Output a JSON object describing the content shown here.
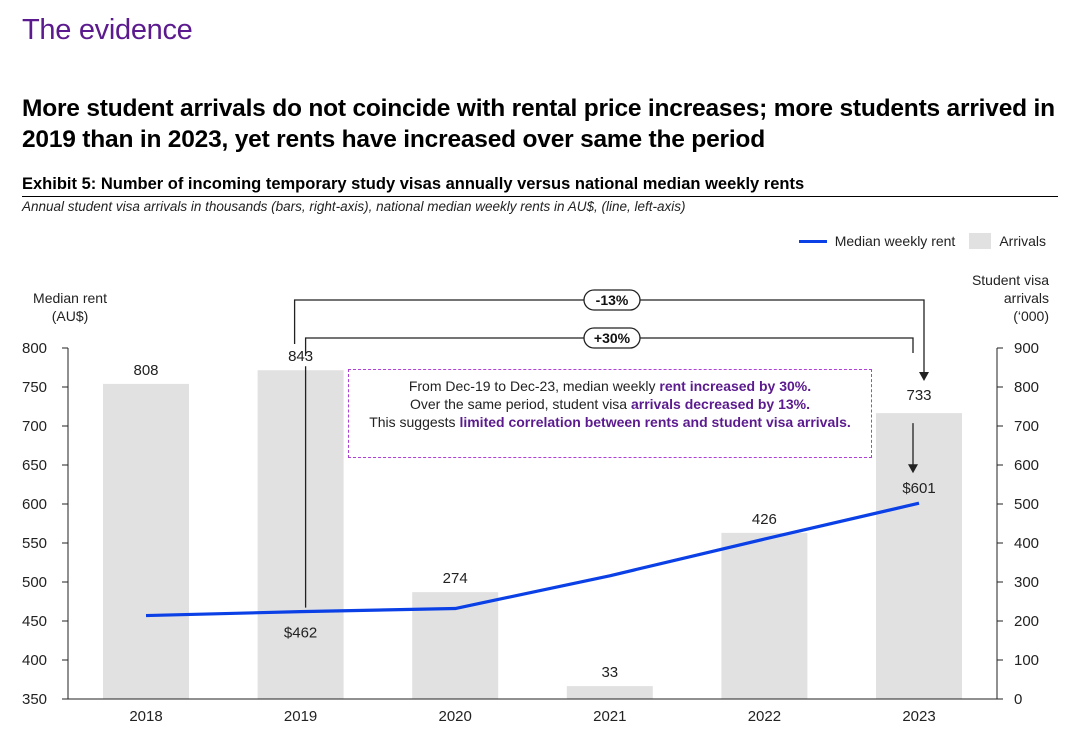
{
  "section_title": "The evidence",
  "headline": "More student arrivals do not coincide with rental price increases; more students arrived in 2019 than in 2023, yet rents have increased over same the period",
  "exhibit": {
    "title": "Exhibit 5: Number of incoming temporary study visas annually versus national median weekly rents",
    "subtitle": "Annual student visa arrivals in thousands (bars, right-axis), national median weekly rents in AU$, (line, left-axis)"
  },
  "legend": {
    "line_label": "Median weekly rent",
    "bar_label": "Arrivals"
  },
  "axis": {
    "left_title_line1": "Median rent",
    "left_title_line2": "(AU$)",
    "right_title_line1": "Student visa",
    "right_title_line2": "arrivals",
    "right_title_line3": "(‘000)"
  },
  "annotation": {
    "part1": "From Dec-19 to Dec-23, median weekly ",
    "bold1": "rent increased by 30%.",
    "part2": "Over the same period, student visa ",
    "bold2": "arrivals decreased by 13%.",
    "part3": "This suggests ",
    "bold3": "limited correlation between rents and student visa arrivals."
  },
  "colors": {
    "line": "#0a40e6",
    "bar": "#e1e1e1",
    "accent": "#5b1a8e",
    "dashed_border": "#b03fd8"
  },
  "chart_data": {
    "type": "bar+line",
    "categories": [
      "2018",
      "2019",
      "2020",
      "2021",
      "2022",
      "2023"
    ],
    "series": [
      {
        "name": "Arrivals",
        "kind": "bar",
        "axis": "right",
        "values": [
          808,
          843,
          274,
          33,
          426,
          733
        ]
      },
      {
        "name": "Median weekly rent",
        "kind": "line",
        "axis": "left",
        "values": [
          457,
          462,
          466,
          508,
          555,
          601
        ]
      }
    ],
    "left_axis": {
      "min": 350,
      "max": 800,
      "ticks": [
        350,
        400,
        450,
        500,
        550,
        600,
        650,
        700,
        750,
        800
      ]
    },
    "right_axis": {
      "min": 0,
      "max": 900,
      "ticks": [
        0,
        100,
        200,
        300,
        400,
        500,
        600,
        700,
        800,
        900
      ]
    },
    "line_labels": [
      {
        "index": 1,
        "text": "$462"
      },
      {
        "index": 5,
        "text": "$601"
      }
    ],
    "comparisons": [
      {
        "label": "-13%",
        "from_index": 1,
        "to_index": 5,
        "measure": "Arrivals"
      },
      {
        "label": "+30%",
        "from_index": 1,
        "to_index": 5,
        "measure": "Median weekly rent"
      }
    ]
  }
}
